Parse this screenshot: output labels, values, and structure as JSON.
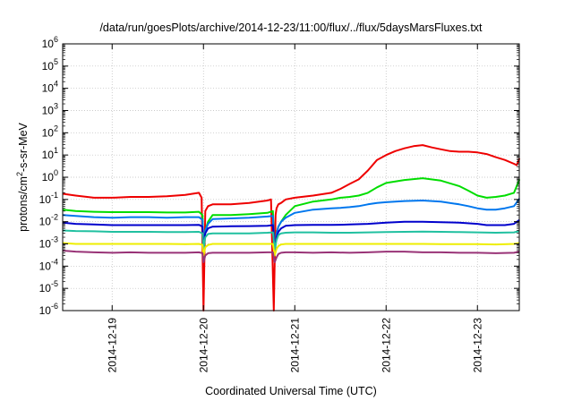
{
  "chart_data": {
    "type": "line",
    "title": "/data/run/goesPlots/archive/2014-12-23/11:00/flux/../flux/5daysMarsFluxes.txt",
    "xlabel": "Coordinated Universal Time (UTC)",
    "ylabel": "protons/cm2-s-sr-MeV",
    "ylabel_parts": {
      "before": "protons/cm",
      "sup": "2",
      "after": "-s-sr-MeV"
    },
    "yscale": "log",
    "ylim": [
      1e-06,
      1000000.0
    ],
    "y_ticks": [
      {
        "exp": "-6"
      },
      {
        "exp": "-5"
      },
      {
        "exp": "-4"
      },
      {
        "exp": "-3"
      },
      {
        "exp": "-2"
      },
      {
        "exp": "-1"
      },
      {
        "exp": "0"
      },
      {
        "exp": "1"
      },
      {
        "exp": "2"
      },
      {
        "exp": "3"
      },
      {
        "exp": "4"
      },
      {
        "exp": "5"
      },
      {
        "exp": "6"
      }
    ],
    "y_tick_base": "10",
    "xlim": [
      "2014-12-18 11:00",
      "2014-12-23 11:00"
    ],
    "x_ticks": [
      "2014-12-19",
      "2014-12-20",
      "2014-12-21",
      "2014-12-22",
      "2014-12-23"
    ],
    "grid": true,
    "x_units": "day of December 2014",
    "series": [
      {
        "color": "#ee0000",
        "x": [
          18.46,
          18.6,
          18.8,
          19.0,
          19.2,
          19.4,
          19.6,
          19.8,
          19.95,
          19.98,
          20.0,
          20.02,
          20.05,
          20.1,
          20.3,
          20.5,
          20.7,
          20.74,
          20.77,
          20.79,
          20.8,
          20.82,
          20.85,
          20.9,
          21.0,
          21.2,
          21.4,
          21.5,
          21.6,
          21.7,
          21.8,
          21.9,
          22.0,
          22.1,
          22.2,
          22.3,
          22.4,
          22.5,
          22.6,
          22.7,
          22.8,
          22.9,
          23.0,
          23.1,
          23.2,
          23.3,
          23.4,
          23.43,
          23.46
        ],
        "y": [
          0.18,
          0.15,
          0.12,
          0.12,
          0.13,
          0.13,
          0.14,
          0.16,
          0.2,
          0.12,
          1e-06,
          0.03,
          0.05,
          0.06,
          0.06,
          0.07,
          0.09,
          0.1,
          1e-06,
          0.02,
          0.04,
          0.06,
          0.07,
          0.1,
          0.12,
          0.15,
          0.2,
          0.3,
          0.5,
          0.8,
          2,
          6,
          10,
          15,
          20,
          25,
          28,
          22,
          18,
          15,
          14,
          14,
          13,
          11,
          8,
          6,
          4,
          3.5,
          7
        ]
      },
      {
        "color": "#00dd00",
        "x": [
          18.46,
          18.6,
          18.8,
          19.0,
          19.2,
          19.4,
          19.6,
          19.8,
          19.95,
          19.99,
          20.0,
          20.02,
          20.05,
          20.1,
          20.3,
          20.5,
          20.7,
          20.76,
          20.78,
          20.8,
          20.82,
          20.85,
          20.9,
          21.0,
          21.2,
          21.4,
          21.5,
          21.6,
          21.7,
          21.8,
          21.9,
          22.0,
          22.2,
          22.4,
          22.6,
          22.8,
          22.9,
          23.0,
          23.1,
          23.2,
          23.3,
          23.4,
          23.46
        ],
        "y": [
          0.035,
          0.03,
          0.028,
          0.027,
          0.027,
          0.027,
          0.026,
          0.026,
          0.028,
          0.02,
          0.0003,
          0.004,
          0.01,
          0.02,
          0.02,
          0.022,
          0.025,
          0.03,
          0.0003,
          0.003,
          0.006,
          0.01,
          0.02,
          0.05,
          0.08,
          0.1,
          0.12,
          0.13,
          0.15,
          0.2,
          0.35,
          0.55,
          0.75,
          0.9,
          0.7,
          0.4,
          0.25,
          0.15,
          0.12,
          0.13,
          0.15,
          0.2,
          0.8
        ]
      },
      {
        "color": "#0077ee",
        "x": [
          18.46,
          18.6,
          18.8,
          19.0,
          19.2,
          19.4,
          19.6,
          19.8,
          19.95,
          19.99,
          20.0,
          20.02,
          20.05,
          20.1,
          20.3,
          20.5,
          20.7,
          20.76,
          20.78,
          20.8,
          20.82,
          20.85,
          20.9,
          21.0,
          21.2,
          21.4,
          21.5,
          21.6,
          21.7,
          21.8,
          21.9,
          22.0,
          22.2,
          22.4,
          22.6,
          22.8,
          22.9,
          23.0,
          23.1,
          23.2,
          23.3,
          23.4,
          23.46
        ],
        "y": [
          0.02,
          0.018,
          0.016,
          0.015,
          0.016,
          0.016,
          0.015,
          0.016,
          0.016,
          0.012,
          0.0004,
          0.004,
          0.008,
          0.013,
          0.014,
          0.015,
          0.017,
          0.018,
          0.0004,
          0.003,
          0.006,
          0.01,
          0.015,
          0.025,
          0.035,
          0.04,
          0.042,
          0.045,
          0.05,
          0.06,
          0.07,
          0.075,
          0.085,
          0.09,
          0.08,
          0.06,
          0.05,
          0.04,
          0.035,
          0.035,
          0.04,
          0.05,
          0.11
        ]
      },
      {
        "color": "#0000cc",
        "x": [
          18.46,
          18.6,
          18.8,
          19.0,
          19.2,
          19.4,
          19.6,
          19.8,
          19.95,
          19.99,
          20.0,
          20.02,
          20.05,
          20.1,
          20.3,
          20.5,
          20.7,
          20.76,
          20.78,
          20.8,
          20.82,
          20.85,
          20.9,
          21.0,
          21.2,
          21.4,
          21.5,
          21.6,
          21.8,
          22.0,
          22.2,
          22.4,
          22.6,
          22.8,
          23.0,
          23.1,
          23.2,
          23.3,
          23.4,
          23.46
        ],
        "y": [
          0.009,
          0.008,
          0.0075,
          0.007,
          0.007,
          0.007,
          0.007,
          0.007,
          0.0072,
          0.006,
          0.0006,
          0.003,
          0.005,
          0.006,
          0.0062,
          0.0063,
          0.0065,
          0.007,
          0.0006,
          0.002,
          0.0035,
          0.005,
          0.0065,
          0.007,
          0.0072,
          0.0072,
          0.0073,
          0.0075,
          0.008,
          0.009,
          0.01,
          0.01,
          0.0095,
          0.009,
          0.008,
          0.007,
          0.007,
          0.007,
          0.008,
          0.012
        ]
      },
      {
        "color": "#20c0a0",
        "x": [
          18.46,
          18.6,
          18.8,
          19.0,
          19.2,
          19.4,
          19.6,
          19.8,
          19.95,
          19.99,
          20.0,
          20.02,
          20.05,
          20.1,
          20.3,
          20.5,
          20.7,
          20.76,
          20.78,
          20.8,
          20.82,
          20.85,
          20.9,
          21.0,
          21.2,
          21.4,
          21.6,
          21.8,
          22.0,
          22.2,
          22.4,
          22.6,
          22.8,
          23.0,
          23.2,
          23.4,
          23.46
        ],
        "y": [
          0.004,
          0.0038,
          0.0037,
          0.0035,
          0.0035,
          0.0035,
          0.0034,
          0.0034,
          0.0035,
          0.003,
          0.0006,
          0.002,
          0.0028,
          0.003,
          0.003,
          0.003,
          0.0032,
          0.0033,
          0.0006,
          0.0015,
          0.0025,
          0.003,
          0.0032,
          0.0033,
          0.0033,
          0.0032,
          0.0032,
          0.0033,
          0.0034,
          0.0035,
          0.0036,
          0.0035,
          0.0034,
          0.0033,
          0.0032,
          0.0033,
          0.0038
        ]
      },
      {
        "color": "#eeee00",
        "x": [
          18.46,
          18.6,
          18.8,
          19.0,
          19.2,
          19.4,
          19.6,
          19.8,
          19.95,
          19.99,
          20.0,
          20.02,
          20.05,
          20.1,
          20.3,
          20.5,
          20.7,
          20.76,
          20.78,
          20.8,
          20.82,
          20.85,
          20.9,
          21.0,
          21.2,
          21.4,
          21.6,
          21.8,
          22.0,
          22.2,
          22.4,
          22.6,
          22.8,
          23.0,
          23.2,
          23.4,
          23.46
        ],
        "y": [
          0.0011,
          0.001,
          0.001,
          0.001,
          0.001,
          0.001,
          0.001,
          0.00098,
          0.001,
          0.0009,
          0.0003,
          0.0007,
          0.0009,
          0.001,
          0.001,
          0.001,
          0.001,
          0.001,
          0.0003,
          0.0006,
          0.0008,
          0.00095,
          0.001,
          0.001,
          0.001,
          0.001,
          0.001,
          0.001,
          0.001,
          0.001,
          0.001,
          0.00098,
          0.00098,
          0.00098,
          0.00095,
          0.001,
          0.0011
        ]
      },
      {
        "color": "#993377",
        "x": [
          18.46,
          18.6,
          18.8,
          19.0,
          19.2,
          19.4,
          19.6,
          19.8,
          19.95,
          19.99,
          20.0,
          20.02,
          20.05,
          20.1,
          20.3,
          20.5,
          20.7,
          20.76,
          20.78,
          20.8,
          20.82,
          20.85,
          20.9,
          21.0,
          21.2,
          21.4,
          21.6,
          21.8,
          22.0,
          22.2,
          22.4,
          22.6,
          22.8,
          23.0,
          23.2,
          23.4,
          23.46
        ],
        "y": [
          0.0005,
          0.00045,
          0.00042,
          0.0004,
          0.00042,
          0.0004,
          0.0004,
          0.0004,
          0.00042,
          0.00038,
          0.00015,
          0.0003,
          0.00038,
          0.0004,
          0.0004,
          0.0004,
          0.00042,
          0.00042,
          0.00015,
          0.00025,
          0.00035,
          0.0004,
          0.00042,
          0.00042,
          0.0004,
          0.00042,
          0.0004,
          0.00042,
          0.00045,
          0.00045,
          0.00042,
          0.00042,
          0.0004,
          0.0004,
          0.00038,
          0.0004,
          0.00045
        ]
      }
    ]
  }
}
